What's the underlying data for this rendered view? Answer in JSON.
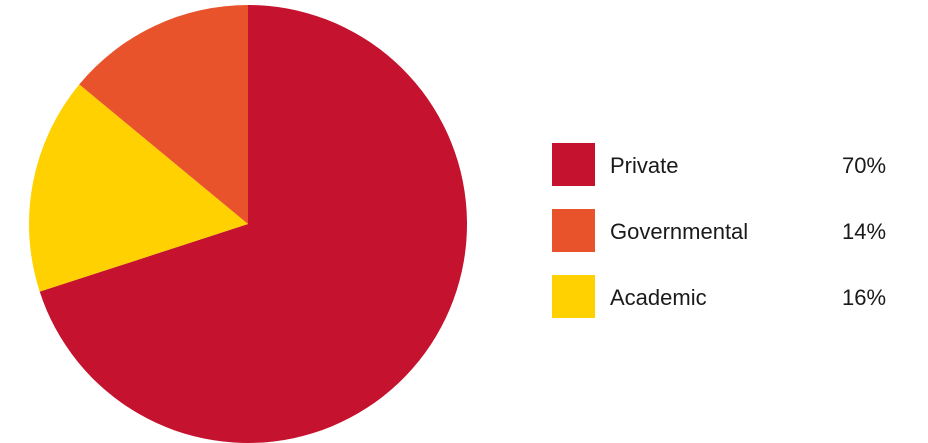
{
  "chart_data": {
    "type": "pie",
    "title": "",
    "slices": [
      {
        "label": "Private",
        "value": 70,
        "value_label": "70%",
        "color": "#C4122F"
      },
      {
        "label": "Governmental",
        "value": 14,
        "value_label": "14%",
        "color": "#E8532B"
      },
      {
        "label": "Academic",
        "value": 16,
        "value_label": "16%",
        "color": "#FFD100"
      }
    ],
    "slice_order_drawn": [
      "Private",
      "Academic",
      "Governmental"
    ],
    "start_angle": "12 o'clock, clockwise",
    "legend_position": "right"
  }
}
